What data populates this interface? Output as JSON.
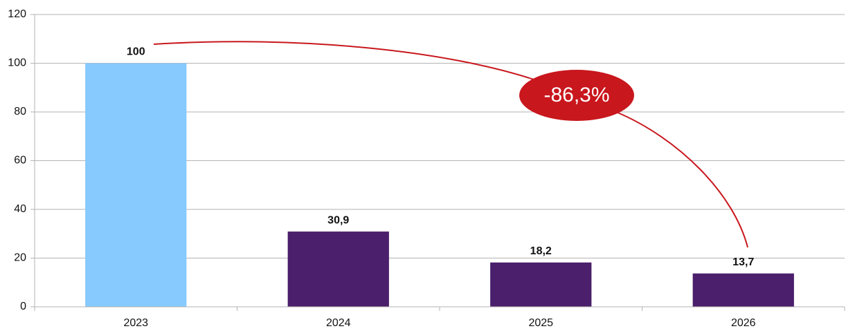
{
  "chart_data": {
    "type": "bar",
    "categories": [
      "2023",
      "2024",
      "2025",
      "2026"
    ],
    "values": [
      100,
      30.9,
      18.2,
      13.7
    ],
    "value_labels": [
      "100",
      "30,9",
      "18,2",
      "13,7"
    ],
    "colors": [
      "#87cafe",
      "#4b1f6b",
      "#4b1f6b",
      "#4b1f6b"
    ],
    "ylim": [
      0,
      120
    ],
    "yticks": [
      0,
      20,
      40,
      60,
      80,
      100,
      120
    ],
    "grid": true,
    "annotation": "-86,3%"
  }
}
